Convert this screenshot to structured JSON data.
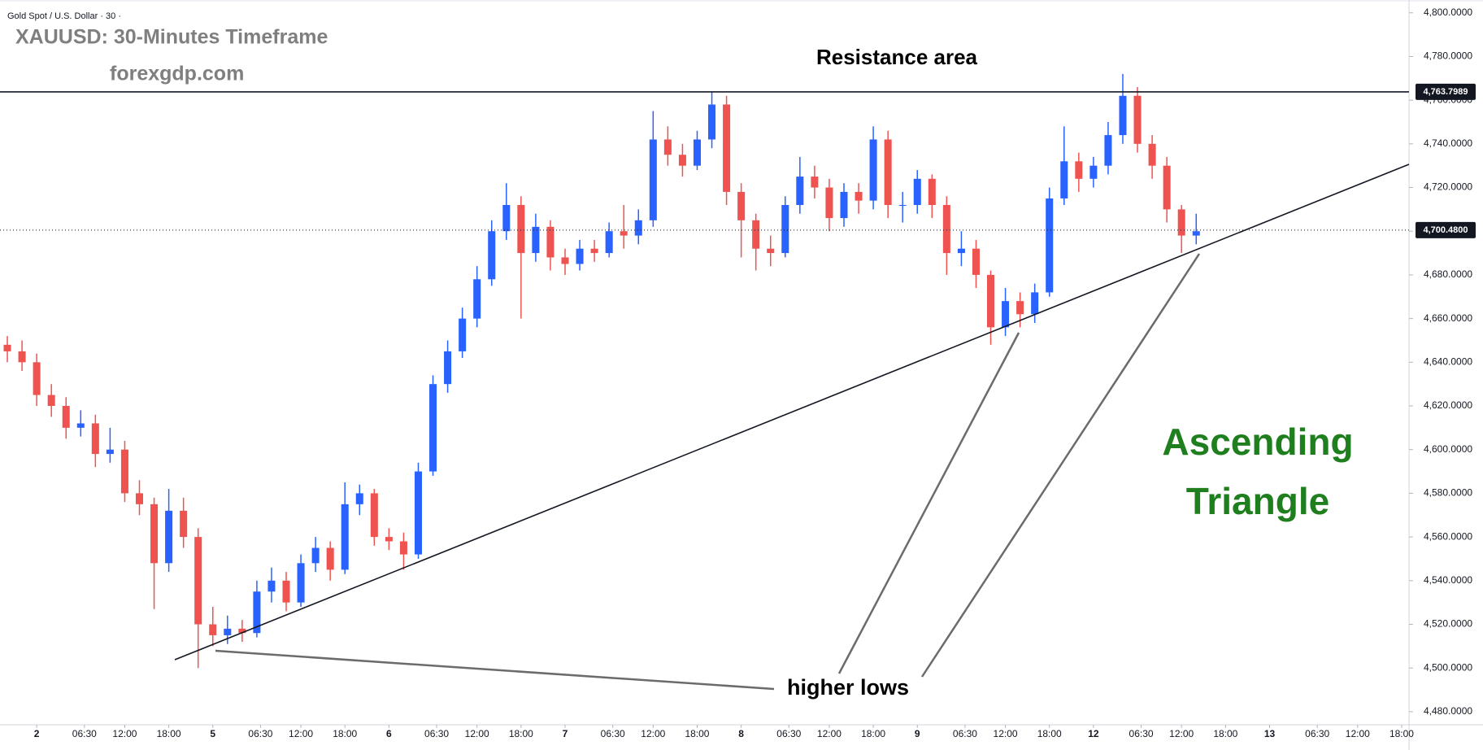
{
  "chart_data": {
    "type": "candlestick",
    "header": "Gold Spot / U.S. Dollar · 30 ·",
    "title": "XAUUSD: 30-Minutes Timeframe",
    "subtitle": "forexgdp.com",
    "annotations": {
      "resistance": "Resistance area",
      "pattern": [
        "Ascending",
        "Triangle"
      ],
      "lows": "higher lows"
    },
    "up_color": "#2962ff",
    "down_color": "#ef5350",
    "grid": false,
    "x": [
      -4,
      -2,
      0,
      2,
      4,
      6,
      8,
      10,
      12,
      14,
      16,
      18,
      20,
      22,
      24,
      26,
      28,
      30,
      32,
      34,
      36,
      38,
      40,
      42,
      44,
      46,
      48,
      50,
      52,
      54,
      56,
      58,
      60,
      62,
      64,
      66,
      68,
      70,
      72,
      74,
      76,
      78,
      80,
      82,
      84,
      86,
      88,
      90,
      92,
      94,
      96,
      98,
      100,
      102,
      104,
      106,
      108,
      110,
      112,
      114,
      116,
      118,
      120,
      122,
      124,
      126,
      128,
      130,
      132,
      134,
      136,
      138,
      140,
      142,
      144,
      146,
      148,
      150,
      152,
      154,
      156,
      158
    ],
    "open": [
      4648,
      4645,
      4640,
      4625,
      4620,
      4610,
      4612,
      4598,
      4600,
      4580,
      4575,
      4548,
      4572,
      4560,
      4520,
      4515,
      4518,
      4516,
      4535,
      4540,
      4530,
      4548,
      4555,
      4545,
      4575,
      4580,
      4560,
      4558,
      4552,
      4590,
      4630,
      4645,
      4660,
      4678,
      4700,
      4712,
      4690,
      4702,
      4688,
      4685,
      4692,
      4690,
      4700,
      4698,
      4705,
      4742,
      4735,
      4730,
      4742,
      4758,
      4718,
      4705,
      4692,
      4690,
      4712,
      4725,
      4720,
      4706,
      4718,
      4714,
      4742,
      4712,
      4712,
      4724,
      4712,
      4690,
      4692,
      4680,
      4656,
      4668,
      4662,
      4672,
      4715,
      4732,
      4724,
      4730,
      4744,
      4762,
      4740,
      4730,
      4710,
      4698
    ],
    "high": [
      4652,
      4650,
      4644,
      4630,
      4624,
      4618,
      4616,
      4610,
      4604,
      4586,
      4578,
      4582,
      4578,
      4564,
      4528,
      4524,
      4522,
      4540,
      4546,
      4544,
      4552,
      4560,
      4558,
      4585,
      4584,
      4582,
      4564,
      4562,
      4594,
      4634,
      4650,
      4665,
      4684,
      4705,
      4722,
      4716,
      4708,
      4705,
      4692,
      4696,
      4696,
      4704,
      4712,
      4710,
      4755,
      4748,
      4740,
      4746,
      4764,
      4762,
      4722,
      4708,
      4698,
      4716,
      4734,
      4730,
      4724,
      4722,
      4722,
      4748,
      4746,
      4718,
      4728,
      4726,
      4716,
      4700,
      4696,
      4682,
      4674,
      4672,
      4676,
      4720,
      4748,
      4736,
      4734,
      4750,
      4772,
      4766,
      4744,
      4734,
      4712,
      4708
    ],
    "low": [
      4640,
      4636,
      4620,
      4615,
      4605,
      4606,
      4592,
      4594,
      4576,
      4570,
      4527,
      4544,
      4555,
      4500,
      4510,
      4511,
      4512,
      4514,
      4530,
      4526,
      4528,
      4544,
      4540,
      4543,
      4570,
      4556,
      4554,
      4545,
      4550,
      4588,
      4626,
      4642,
      4656,
      4675,
      4696,
      4660,
      4686,
      4682,
      4680,
      4682,
      4686,
      4688,
      4692,
      4694,
      4702,
      4730,
      4725,
      4728,
      4738,
      4712,
      4688,
      4682,
      4684,
      4688,
      4708,
      4715,
      4700,
      4702,
      4708,
      4710,
      4706,
      4704,
      4708,
      4706,
      4680,
      4684,
      4674,
      4648,
      4652,
      4656,
      4658,
      4670,
      4712,
      4718,
      4720,
      4726,
      4740,
      4736,
      4724,
      4704,
      4690,
      4694
    ],
    "close": [
      4645,
      4640,
      4625,
      4620,
      4610,
      4612,
      4598,
      4600,
      4580,
      4575,
      4548,
      4572,
      4560,
      4520,
      4515,
      4518,
      4516,
      4535,
      4540,
      4530,
      4548,
      4555,
      4545,
      4575,
      4580,
      4560,
      4558,
      4552,
      4590,
      4630,
      4645,
      4660,
      4678,
      4700,
      4712,
      4690,
      4702,
      4688,
      4685,
      4692,
      4690,
      4700,
      4698,
      4705,
      4742,
      4735,
      4730,
      4742,
      4758,
      4718,
      4705,
      4692,
      4690,
      4712,
      4725,
      4720,
      4706,
      4718,
      4714,
      4742,
      4712,
      4712,
      4724,
      4712,
      4690,
      4692,
      4680,
      4656,
      4668,
      4662,
      4672,
      4715,
      4732,
      4724,
      4730,
      4744,
      4762,
      4740,
      4730,
      4710,
      4698,
      4700
    ],
    "xlim": [
      -5,
      187
    ],
    "xticks": [
      {
        "value": 0,
        "label": "2"
      },
      {
        "value": 6.5,
        "label": "06:30"
      },
      {
        "value": 12,
        "label": "12:00"
      },
      {
        "value": 18,
        "label": "18:00"
      },
      {
        "value": 24,
        "label": "5"
      },
      {
        "value": 30.5,
        "label": "06:30"
      },
      {
        "value": 36,
        "label": "12:00"
      },
      {
        "value": 42,
        "label": "18:00"
      },
      {
        "value": 48,
        "label": "6"
      },
      {
        "value": 54.5,
        "label": "06:30"
      },
      {
        "value": 60,
        "label": "12:00"
      },
      {
        "value": 66,
        "label": "18:00"
      },
      {
        "value": 72,
        "label": "7"
      },
      {
        "value": 78.5,
        "label": "06:30"
      },
      {
        "value": 84,
        "label": "12:00"
      },
      {
        "value": 90,
        "label": "18:00"
      },
      {
        "value": 96,
        "label": "8"
      },
      {
        "value": 102.5,
        "label": "06:30"
      },
      {
        "value": 108,
        "label": "12:00"
      },
      {
        "value": 114,
        "label": "18:00"
      },
      {
        "value": 120,
        "label": "9"
      },
      {
        "value": 126.5,
        "label": "06:30"
      },
      {
        "value": 132,
        "label": "12:00"
      },
      {
        "value": 138,
        "label": "18:00"
      },
      {
        "value": 144,
        "label": "12"
      },
      {
        "value": 150.5,
        "label": "06:30"
      },
      {
        "value": 156,
        "label": "12:00"
      },
      {
        "value": 162,
        "label": "18:00"
      },
      {
        "value": 168,
        "label": "13"
      },
      {
        "value": 174.5,
        "label": "06:30"
      },
      {
        "value": 180,
        "label": "12:00"
      },
      {
        "value": 186,
        "label": "18:00"
      }
    ],
    "ylim": [
      4474,
      4804
    ],
    "yticks": [
      {
        "value": 4480,
        "label": "4,480.0000"
      },
      {
        "value": 4500,
        "label": "4,500.0000"
      },
      {
        "value": 4520,
        "label": "4,520.0000"
      },
      {
        "value": 4540,
        "label": "4,540.0000"
      },
      {
        "value": 4560,
        "label": "4,560.0000"
      },
      {
        "value": 4580,
        "label": "4,580.0000"
      },
      {
        "value": 4600,
        "label": "4,600.0000"
      },
      {
        "value": 4620,
        "label": "4,620.0000"
      },
      {
        "value": 4640,
        "label": "4,640.0000"
      },
      {
        "value": 4660,
        "label": "4,660.0000"
      },
      {
        "value": 4680,
        "label": "4,680.0000"
      },
      {
        "value": 4700,
        "label": "4,700.0000"
      },
      {
        "value": 4720,
        "label": "4,720.0000"
      },
      {
        "value": 4740,
        "label": "4,740.0000"
      },
      {
        "value": 4760,
        "label": "4,760.0000"
      },
      {
        "value": 4780,
        "label": "4,780.0000"
      },
      {
        "value": 4800,
        "label": "4,800.0000"
      }
    ],
    "price_lines": [
      {
        "value": 4763.7989,
        "label": "4,763.7989",
        "style": "solid"
      },
      {
        "value": 4700.48,
        "label": "4,700.4800",
        "style": "dotted"
      }
    ]
  }
}
